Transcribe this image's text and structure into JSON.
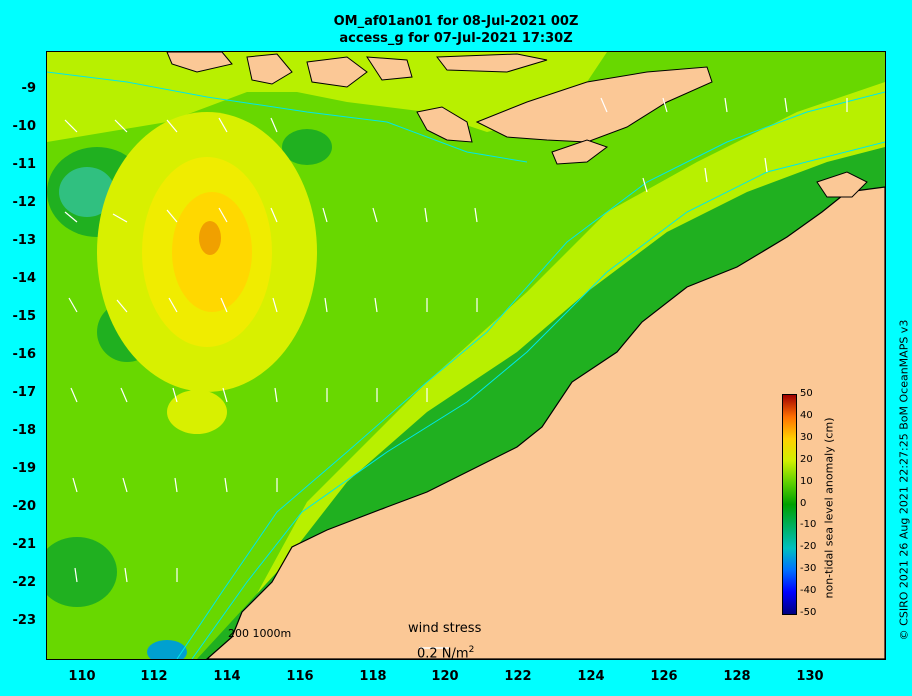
{
  "title_line1": "OM_af01an01 for 08-Jul-2021 00Z",
  "title_line2": "access_g for 07-Jul-2021 17:30Z",
  "lat_ticks": [
    "-9",
    "-10",
    "-11",
    "-12",
    "-13",
    "-14",
    "-15",
    "-16",
    "-17",
    "-18",
    "-19",
    "-20",
    "-21",
    "-22",
    "-23"
  ],
  "lon_ticks": [
    "110",
    "112",
    "114",
    "116",
    "118",
    "120",
    "122",
    "124",
    "126",
    "128",
    "130"
  ],
  "colorbar": {
    "label": "non-tidal sea level anomaly (cm)",
    "ticks": [
      "50",
      "40",
      "30",
      "20",
      "10",
      "0",
      "-10",
      "-20",
      "-30",
      "-40",
      "-50"
    ]
  },
  "scale_bar": "200  1000m",
  "wind": {
    "label": "wind stress",
    "value": "0.2 N/m",
    "exp": "2"
  },
  "credit": "© CSIRO 2021   26 Aug 2021 22:27:25 BoM OceanMAPS v3",
  "colors": {
    "land": "#fbc896",
    "frame": "#00ffff",
    "sea_low": "#00a000",
    "sea_mid": "#9ee84a",
    "sea_high": "#ffd000"
  }
}
